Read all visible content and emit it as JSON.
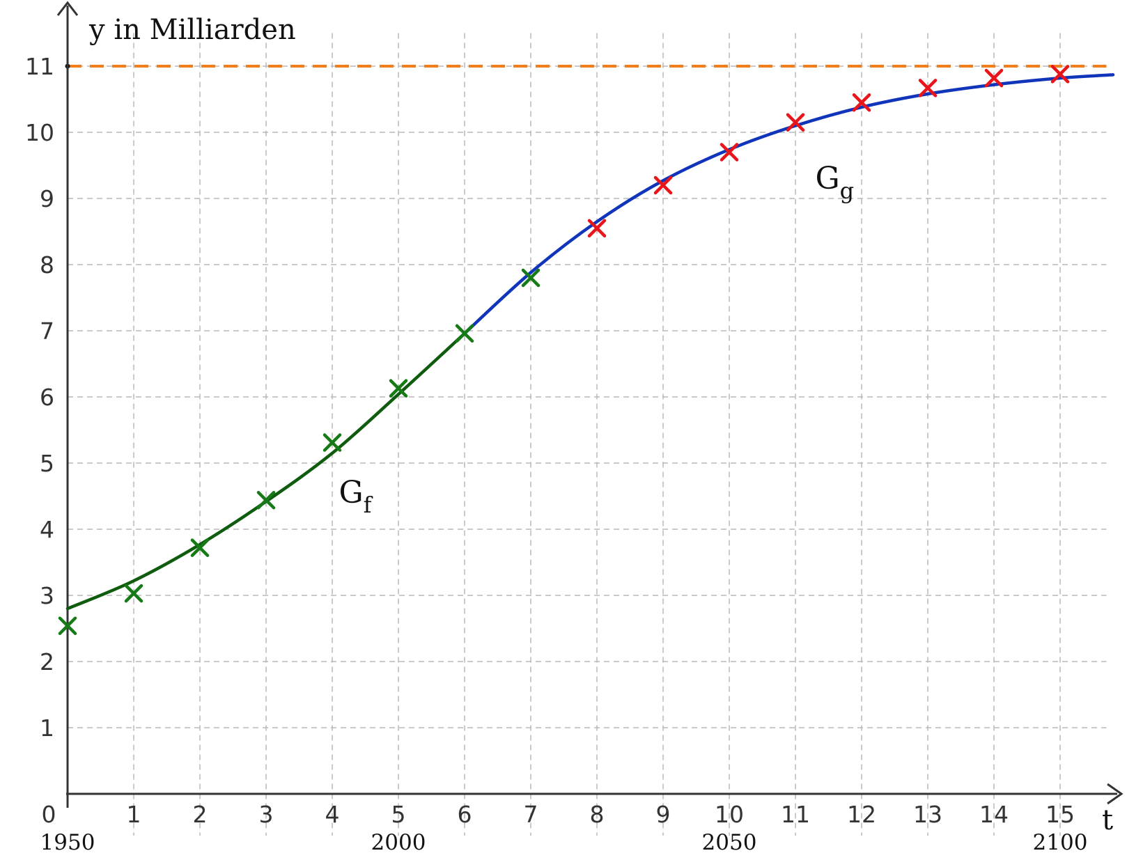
{
  "chart_data": {
    "type": "scatter",
    "xlabel": "t",
    "ylabel": "y in Milliarden",
    "xlim": [
      0,
      15.7
    ],
    "ylim": [
      0,
      11.5
    ],
    "x_ticks": [
      "0",
      "1",
      "2",
      "3",
      "4",
      "5",
      "6",
      "7",
      "8",
      "9",
      "10",
      "11",
      "12",
      "13",
      "14",
      "15"
    ],
    "y_ticks": [
      "1",
      "2",
      "3",
      "4",
      "5",
      "6",
      "7",
      "8",
      "9",
      "10",
      "11"
    ],
    "year_labels": [
      {
        "t": 0,
        "label": "1950"
      },
      {
        "t": 5,
        "label": "2000"
      },
      {
        "t": 10,
        "label": "2050"
      },
      {
        "t": 15,
        "label": "2100"
      }
    ],
    "asymptote": {
      "y": 11,
      "color": "#f07f1a"
    },
    "series": [
      {
        "name": "f",
        "kind": "points",
        "color": "#167a16",
        "points": [
          [
            0,
            2.54
          ],
          [
            1,
            3.03
          ],
          [
            2,
            3.72
          ],
          [
            3,
            4.44
          ],
          [
            4,
            5.31
          ],
          [
            5,
            6.13
          ],
          [
            6,
            6.96
          ],
          [
            7,
            7.8
          ]
        ]
      },
      {
        "name": "g",
        "kind": "points",
        "color": "#e8151b",
        "points": [
          [
            8,
            8.55
          ],
          [
            9,
            9.2
          ],
          [
            10,
            9.7
          ],
          [
            11,
            10.15
          ],
          [
            12,
            10.45
          ],
          [
            13,
            10.67
          ],
          [
            14,
            10.82
          ],
          [
            15,
            10.88
          ]
        ]
      },
      {
        "name": "G_f",
        "kind": "curve",
        "color": "#0f5c0f",
        "points": [
          [
            0,
            2.8
          ],
          [
            1,
            3.22
          ],
          [
            2,
            3.77
          ],
          [
            3,
            4.42
          ],
          [
            4,
            5.15
          ],
          [
            5,
            6.04
          ],
          [
            6,
            6.96
          ]
        ]
      },
      {
        "name": "G_g",
        "kind": "curve",
        "color": "#1035bb",
        "points": [
          [
            6,
            6.96
          ],
          [
            7,
            7.88
          ],
          [
            8,
            8.65
          ],
          [
            9,
            9.27
          ],
          [
            10,
            9.74
          ],
          [
            11,
            10.1
          ],
          [
            12,
            10.38
          ],
          [
            13,
            10.58
          ],
          [
            14,
            10.72
          ],
          [
            15,
            10.82
          ],
          [
            15.8,
            10.87
          ]
        ]
      }
    ],
    "annotations": [
      {
        "base": "G",
        "sub": "f",
        "x": 4.1,
        "y": 4.4
      },
      {
        "base": "G",
        "sub": "g",
        "x": 11.3,
        "y": 9.15
      }
    ]
  }
}
